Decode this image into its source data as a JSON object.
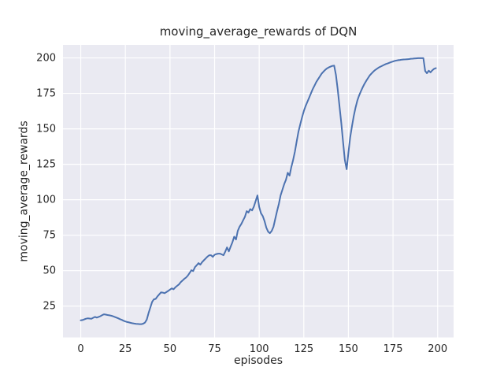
{
  "chart_data": {
    "type": "line",
    "title": "moving_average_rewards of DQN",
    "xlabel": "episodes",
    "ylabel": "moving_average_rewards",
    "x_ticks": [
      0,
      25,
      50,
      75,
      100,
      125,
      150,
      175,
      200
    ],
    "y_ticks": [
      25,
      50,
      75,
      100,
      125,
      150,
      175,
      200
    ],
    "xlim": [
      -9.95,
      208.95
    ],
    "ylim": [
      2.9,
      209.2
    ],
    "grid": true,
    "legend": false,
    "colors": {
      "line": "#4C72B0",
      "axes_background": "#EAEAF2",
      "grid": "#FFFFFF",
      "text": "#262626",
      "figure_background": "#FFFFFF"
    },
    "series": [
      {
        "name": "moving_average_rewards",
        "points": [
          [
            0,
            15.0
          ],
          [
            1,
            15.2
          ],
          [
            2,
            15.7
          ],
          [
            3,
            16.1
          ],
          [
            4,
            16.4
          ],
          [
            5,
            16.2
          ],
          [
            6,
            16.1
          ],
          [
            7,
            16.8
          ],
          [
            8,
            17.4
          ],
          [
            9,
            16.9
          ],
          [
            10,
            17.4
          ],
          [
            11,
            17.9
          ],
          [
            12,
            18.6
          ],
          [
            13,
            19.2
          ],
          [
            14,
            19.0
          ],
          [
            15,
            18.7
          ],
          [
            16,
            18.5
          ],
          [
            17,
            18.2
          ],
          [
            18,
            17.9
          ],
          [
            19,
            17.4
          ],
          [
            20,
            16.9
          ],
          [
            21,
            16.4
          ],
          [
            22,
            15.8
          ],
          [
            23,
            15.3
          ],
          [
            24,
            14.7
          ],
          [
            25,
            14.2
          ],
          [
            26,
            13.8
          ],
          [
            27,
            13.5
          ],
          [
            28,
            13.2
          ],
          [
            29,
            12.9
          ],
          [
            30,
            12.7
          ],
          [
            31,
            12.5
          ],
          [
            32,
            12.4
          ],
          [
            33,
            12.3
          ],
          [
            34,
            12.3
          ],
          [
            35,
            12.6
          ],
          [
            36,
            13.4
          ],
          [
            37,
            15.5
          ],
          [
            38,
            20.0
          ],
          [
            39,
            24.0
          ],
          [
            40,
            28.0
          ],
          [
            41,
            29.8
          ],
          [
            42,
            30.1
          ],
          [
            43,
            31.9
          ],
          [
            44,
            33.3
          ],
          [
            45,
            34.7
          ],
          [
            46,
            34.5
          ],
          [
            47,
            34.1
          ],
          [
            48,
            34.9
          ],
          [
            49,
            35.7
          ],
          [
            50,
            36.6
          ],
          [
            51,
            37.5
          ],
          [
            52,
            36.9
          ],
          [
            53,
            38.2
          ],
          [
            54,
            39.3
          ],
          [
            55,
            40.3
          ],
          [
            56,
            41.8
          ],
          [
            57,
            43.0
          ],
          [
            58,
            44.2
          ],
          [
            59,
            45.1
          ],
          [
            60,
            46.5
          ],
          [
            61,
            48.4
          ],
          [
            62,
            50.3
          ],
          [
            63,
            49.7
          ],
          [
            64,
            52.5
          ],
          [
            65,
            53.8
          ],
          [
            66,
            55.3
          ],
          [
            67,
            54.2
          ],
          [
            68,
            56.0
          ],
          [
            69,
            57.3
          ],
          [
            70,
            58.6
          ],
          [
            71,
            59.9
          ],
          [
            72,
            60.9
          ],
          [
            73,
            60.9
          ],
          [
            74,
            59.7
          ],
          [
            75,
            61.2
          ],
          [
            76,
            61.7
          ],
          [
            77,
            62.0
          ],
          [
            78,
            62.0
          ],
          [
            79,
            61.5
          ],
          [
            80,
            60.9
          ],
          [
            81,
            63.5
          ],
          [
            82,
            66.4
          ],
          [
            83,
            63.6
          ],
          [
            84,
            67.0
          ],
          [
            85,
            70.0
          ],
          [
            86,
            74.0
          ],
          [
            87,
            72.0
          ],
          [
            88,
            78.0
          ],
          [
            89,
            81.0
          ],
          [
            90,
            83.0
          ],
          [
            91,
            85.5
          ],
          [
            92,
            88.0
          ],
          [
            93,
            92.0
          ],
          [
            94,
            91.0
          ],
          [
            95,
            93.4
          ],
          [
            96,
            92.5
          ],
          [
            97,
            95.0
          ],
          [
            98,
            99.0
          ],
          [
            99,
            103.0
          ],
          [
            100,
            95.0
          ],
          [
            101,
            90.5
          ],
          [
            102,
            88.5
          ],
          [
            103,
            85.0
          ],
          [
            104,
            80.3
          ],
          [
            105,
            77.5
          ],
          [
            106,
            76.4
          ],
          [
            107,
            78.0
          ],
          [
            108,
            81.0
          ],
          [
            109,
            86.4
          ],
          [
            110,
            92.0
          ],
          [
            111,
            97.0
          ],
          [
            112,
            103.0
          ],
          [
            113,
            107.0
          ],
          [
            114,
            111.0
          ],
          [
            115,
            114.0
          ],
          [
            116,
            119.0
          ],
          [
            117,
            117.0
          ],
          [
            118,
            123.0
          ],
          [
            119,
            128.0
          ],
          [
            120,
            134.0
          ],
          [
            121,
            141.0
          ],
          [
            122,
            148.0
          ],
          [
            123,
            153.0
          ],
          [
            124,
            158.0
          ],
          [
            125,
            162.5
          ],
          [
            126,
            166.0
          ],
          [
            127,
            169.0
          ],
          [
            128,
            172.0
          ],
          [
            129,
            175.0
          ],
          [
            130,
            178.0
          ],
          [
            131,
            180.5
          ],
          [
            132,
            183.0
          ],
          [
            133,
            185.0
          ],
          [
            134,
            187.0
          ],
          [
            135,
            188.9
          ],
          [
            136,
            190.3
          ],
          [
            137,
            191.6
          ],
          [
            138,
            192.6
          ],
          [
            139,
            193.3
          ],
          [
            140,
            193.9
          ],
          [
            141,
            194.4
          ],
          [
            142,
            194.6
          ],
          [
            143,
            188.0
          ],
          [
            144,
            178.0
          ],
          [
            145,
            166.0
          ],
          [
            146,
            154.0
          ],
          [
            147,
            141.0
          ],
          [
            148,
            128.0
          ],
          [
            149,
            121.5
          ],
          [
            150,
            133.0
          ],
          [
            151,
            144.0
          ],
          [
            152,
            152.0
          ],
          [
            153,
            159.0
          ],
          [
            154,
            165.0
          ],
          [
            155,
            170.0
          ],
          [
            156,
            173.5
          ],
          [
            157,
            176.5
          ],
          [
            158,
            179.3
          ],
          [
            159,
            181.7
          ],
          [
            160,
            183.9
          ],
          [
            161,
            185.9
          ],
          [
            162,
            187.7
          ],
          [
            163,
            189.1
          ],
          [
            164,
            190.4
          ],
          [
            165,
            191.5
          ],
          [
            166,
            192.4
          ],
          [
            167,
            193.2
          ],
          [
            168,
            193.9
          ],
          [
            169,
            194.5
          ],
          [
            170,
            195.1
          ],
          [
            171,
            195.7
          ],
          [
            172,
            196.1
          ],
          [
            173,
            196.6
          ],
          [
            174,
            197.1
          ],
          [
            175,
            197.5
          ],
          [
            176,
            197.9
          ],
          [
            177,
            198.2
          ],
          [
            178,
            198.4
          ],
          [
            179,
            198.6
          ],
          [
            180,
            198.8
          ],
          [
            181,
            198.9
          ],
          [
            182,
            199.0
          ],
          [
            183,
            199.1
          ],
          [
            184,
            199.2
          ],
          [
            185,
            199.4
          ],
          [
            186,
            199.5
          ],
          [
            187,
            199.6
          ],
          [
            188,
            199.7
          ],
          [
            189,
            199.8
          ],
          [
            190,
            199.8
          ],
          [
            191,
            199.8
          ],
          [
            192,
            199.8
          ],
          [
            193,
            190.8
          ],
          [
            194,
            189.2
          ],
          [
            195,
            191.0
          ],
          [
            196,
            189.8
          ],
          [
            197,
            191.2
          ],
          [
            198,
            192.3
          ],
          [
            199,
            192.8
          ]
        ]
      }
    ]
  }
}
